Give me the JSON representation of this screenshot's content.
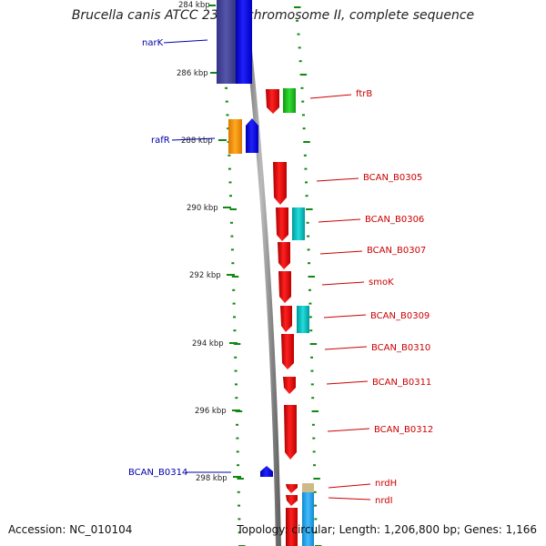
{
  "title": "Brucella canis ATCC 23365 chromosome II, complete sequence",
  "footer": {
    "accession": "Accession: NC_010104",
    "summary": "Topology: circular; Length: 1,206,800 bp; Genes: 1,166"
  },
  "scale_labels": [
    "284 kbp",
    "286 kbp",
    "288 kbp",
    "290 kbp",
    "292 kbp",
    "294 kbp",
    "296 kbp",
    "298 kbp"
  ],
  "genes_left": [
    {
      "name": "narK",
      "color": "#0000dd"
    },
    {
      "name": "rafR",
      "color": "#0000dd"
    },
    {
      "name": "BCAN_B0314",
      "color": "#0000dd"
    }
  ],
  "genes_right": [
    {
      "name": "ftrB",
      "color": "#dd0000"
    },
    {
      "name": "BCAN_B0305",
      "color": "#dd0000"
    },
    {
      "name": "BCAN_B0306",
      "color": "#dd0000"
    },
    {
      "name": "BCAN_B0307",
      "color": "#dd0000"
    },
    {
      "name": "smoK",
      "color": "#dd0000"
    },
    {
      "name": "BCAN_B0309",
      "color": "#dd0000"
    },
    {
      "name": "BCAN_B0310",
      "color": "#dd0000"
    },
    {
      "name": "BCAN_B0311",
      "color": "#dd0000"
    },
    {
      "name": "BCAN_B0312",
      "color": "#dd0000"
    },
    {
      "name": "nrdH",
      "color": "#dd0000"
    },
    {
      "name": "nrdI",
      "color": "#dd0000"
    }
  ],
  "colors": {
    "backbone": "#888888",
    "scale_ticks": "#118811",
    "forward_cds": "#ee0000",
    "reverse_cds": "#0000ee",
    "green_feature": "#22cc22",
    "cyan_feature": "#11cccc",
    "orange_feature": "#ff9900",
    "purple_feature": "#444499",
    "light_blue_feature": "#22aaee",
    "tan_feature": "#ccbb88"
  }
}
